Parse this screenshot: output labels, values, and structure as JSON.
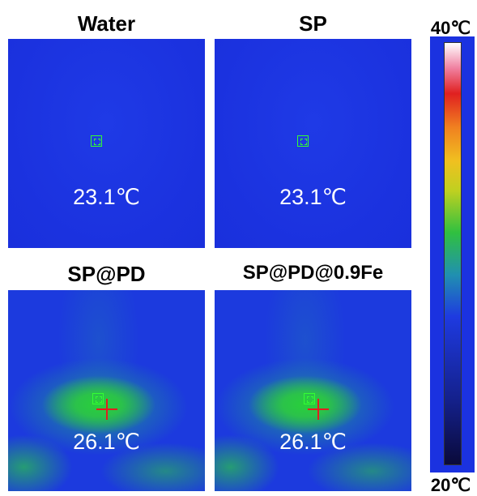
{
  "panels": [
    {
      "title": "Water",
      "temperature": "23.1℃"
    },
    {
      "title": "SP",
      "temperature": "23.1℃"
    },
    {
      "title": "SP@PD",
      "temperature": "26.1℃"
    },
    {
      "title": "SP@PD@0.9Fe",
      "temperature": "26.1℃"
    }
  ],
  "colorbar": {
    "max_label": "40℃",
    "min_label": "20℃"
  }
}
